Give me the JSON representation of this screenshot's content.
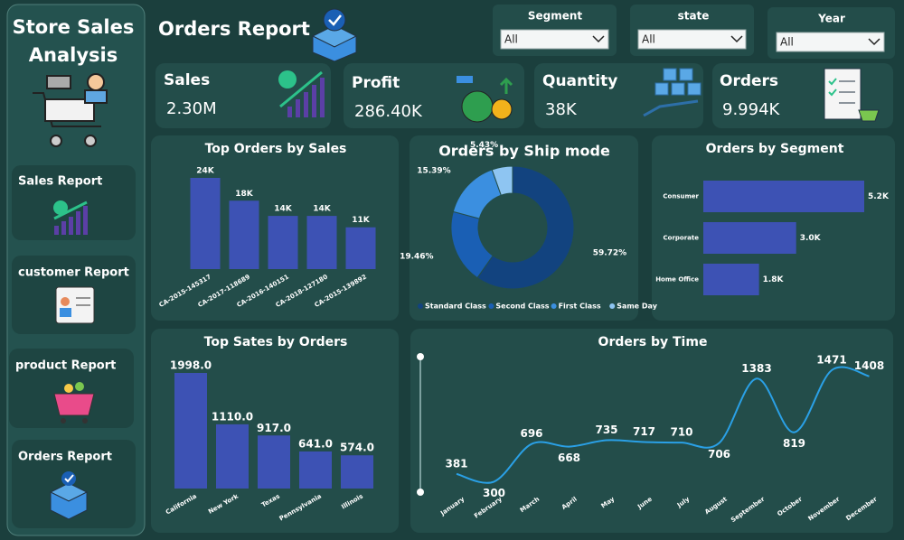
{
  "sidebar": {
    "title_lines": [
      "Store Sales",
      "Analysis"
    ],
    "nav": [
      "Sales Report",
      "customer Report",
      "product Report",
      "Orders Report"
    ]
  },
  "header": {
    "title": "Orders Report"
  },
  "filters": [
    {
      "label": "Segment",
      "value": "All"
    },
    {
      "label": "state",
      "value": "All"
    },
    {
      "label": "Year",
      "value": "All"
    }
  ],
  "kpis": [
    {
      "label": "Sales",
      "value": "2.30M"
    },
    {
      "label": "Profit",
      "value": "286.40K"
    },
    {
      "label": "Quantity",
      "value": "38K"
    },
    {
      "label": "Orders",
      "value": "9.994K"
    }
  ],
  "chart_data": [
    {
      "type": "bar",
      "title": "Top Orders by Sales",
      "categories": [
        "CA-2015-145317",
        "CA-2017-118689",
        "CA-2016-140151",
        "CA-2018-127180",
        "CA-2015-139892"
      ],
      "values": [
        24000,
        18000,
        14000,
        14000,
        11000
      ],
      "value_labels": [
        "24K",
        "18K",
        "14K",
        "14K",
        "11K"
      ],
      "color": "#3d52b4"
    },
    {
      "type": "donut",
      "title": "Orders by Ship mode",
      "categories": [
        "Standard Class",
        "Second Class",
        "First Class",
        "Same Day"
      ],
      "values": [
        59.72,
        19.46,
        15.39,
        5.43
      ],
      "value_labels": [
        "59.72%",
        "19.46%",
        "15.39%",
        "5.43%"
      ],
      "colors": [
        "#12437f",
        "#1a5fb4",
        "#3b8fe0",
        "#8ec5f2"
      ]
    },
    {
      "type": "hbar",
      "title": "Orders by Segment",
      "categories": [
        "Consumer",
        "Corporate",
        "Home Office"
      ],
      "values": [
        5200,
        3000,
        1800
      ],
      "value_labels": [
        "5.2K",
        "3.0K",
        "1.8K"
      ],
      "color": "#3d52b4"
    },
    {
      "type": "bar",
      "title": "Top Sates by Orders",
      "categories": [
        "California",
        "New York",
        "Texas",
        "Pennsylvania",
        "Illinois"
      ],
      "values": [
        1998,
        1110,
        917,
        641,
        574
      ],
      "value_labels": [
        "1998.0",
        "1110.0",
        "917.0",
        "641.0",
        "574.0"
      ],
      "color": "#3d52b4"
    },
    {
      "type": "line",
      "title": "Orders by Time",
      "categories": [
        "January",
        "February",
        "March",
        "April",
        "May",
        "June",
        "July",
        "August",
        "September",
        "October",
        "November",
        "December"
      ],
      "values": [
        381,
        300,
        696,
        668,
        735,
        717,
        710,
        706,
        1383,
        819,
        1471,
        1408
      ],
      "color": "#2aa0e6"
    }
  ]
}
